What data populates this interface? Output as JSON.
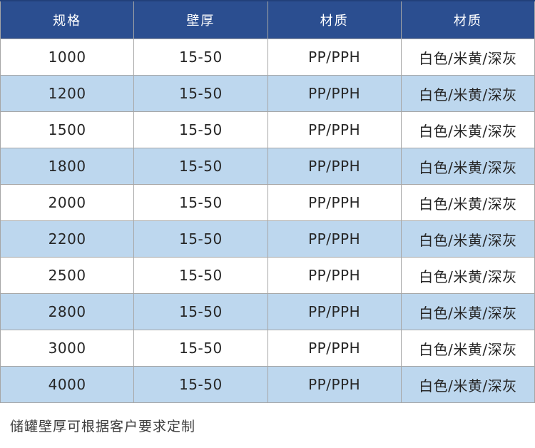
{
  "colors": {
    "header_bg": "#2B4E90",
    "header_top_border": "#22407A",
    "header_text": "#FFFFFF",
    "row_bg": "#FFFFFF",
    "row_alt_bg": "#BDD7EE",
    "cell_border": "#A6A6A6",
    "body_text": "#262626",
    "note_text": "#3D3D3D"
  },
  "table": {
    "columns": [
      {
        "label": "规格"
      },
      {
        "label": "壁厚"
      },
      {
        "label": "材质"
      },
      {
        "label": "材质"
      }
    ],
    "rows": [
      [
        "1000",
        "15-50",
        "PP/PPH",
        "白色/米黄/深灰"
      ],
      [
        "1200",
        "15-50",
        "PP/PPH",
        "白色/米黄/深灰"
      ],
      [
        "1500",
        "15-50",
        "PP/PPH",
        "白色/米黄/深灰"
      ],
      [
        "1800",
        "15-50",
        "PP/PPH",
        "白色/米黄/深灰"
      ],
      [
        "2000",
        "15-50",
        "PP/PPH",
        "白色/米黄/深灰"
      ],
      [
        "2200",
        "15-50",
        "PP/PPH",
        "白色/米黄/深灰"
      ],
      [
        "2500",
        "15-50",
        "PP/PPH",
        "白色/米黄/深灰"
      ],
      [
        "2800",
        "15-50",
        "PP/PPH",
        "白色/米黄/深灰"
      ],
      [
        "3000",
        "15-50",
        "PP/PPH",
        "白色/米黄/深灰"
      ],
      [
        "4000",
        "15-50",
        "PP/PPH",
        "白色/米黄/深灰"
      ]
    ]
  },
  "footer": {
    "note": "储罐壁厚可根据客户要求定制"
  }
}
